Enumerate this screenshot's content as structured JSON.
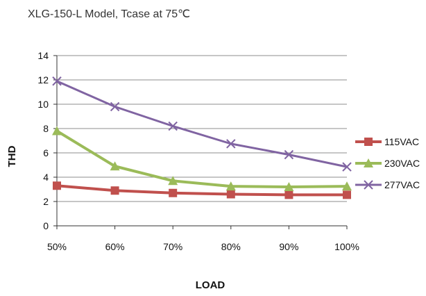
{
  "chart_data": {
    "type": "line",
    "title": "XLG-150-L Model, Tcase at 75℃",
    "xlabel": "LOAD",
    "ylabel": "THD",
    "categories": [
      "50%",
      "60%",
      "70%",
      "80%",
      "90%",
      "100%"
    ],
    "ylim": [
      0,
      14
    ],
    "yticks": [
      0,
      2,
      4,
      6,
      8,
      10,
      12,
      14
    ],
    "grid": true,
    "legend_position": "right",
    "series": [
      {
        "name": "115VAC",
        "values": [
          3.3,
          2.9,
          2.7,
          2.6,
          2.55,
          2.55
        ],
        "color": "#c0504d",
        "marker": "square"
      },
      {
        "name": "230VAC",
        "values": [
          7.8,
          4.9,
          3.7,
          3.25,
          3.2,
          3.25
        ],
        "color": "#9bbb59",
        "marker": "triangle"
      },
      {
        "name": "277VAC",
        "values": [
          11.9,
          9.8,
          8.2,
          6.75,
          5.85,
          4.85
        ],
        "color": "#8064a2",
        "marker": "x"
      }
    ]
  }
}
